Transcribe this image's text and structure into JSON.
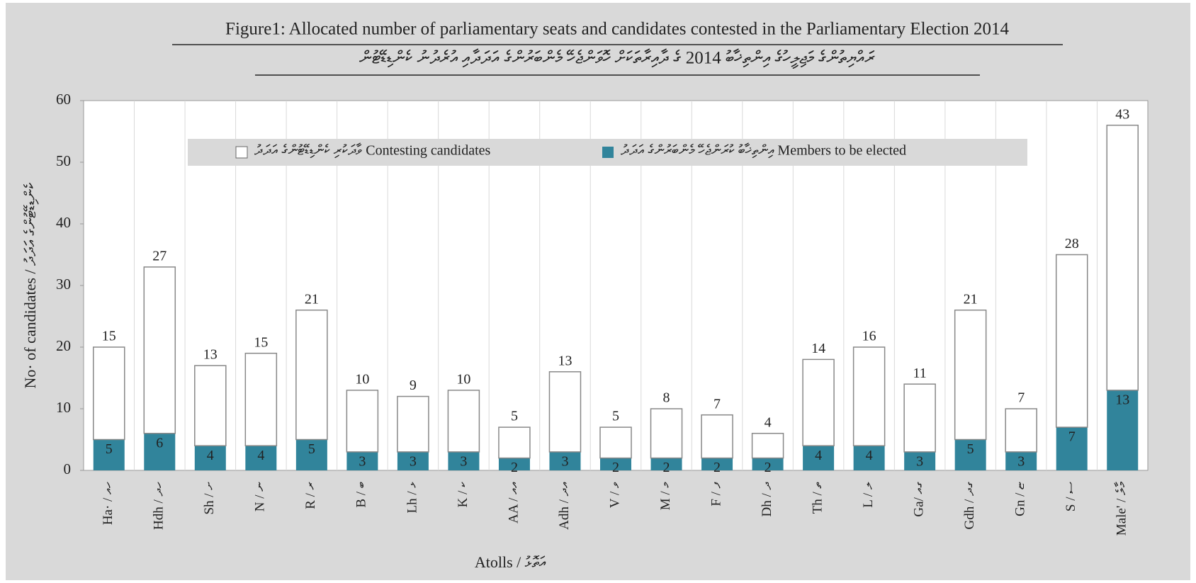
{
  "chart_data": {
    "type": "stacked_bar",
    "title": "Figure1: Allocated number of parliamentary seats and candidates contested in the Parliamentary Election 2014",
    "subtitle": "ރައްޔިތުންގެ މަޖިލީހުގެ އިންތިޚާބު 2014 ގެ ދާއިރާތަކަށް ހޮވަންޖެހޭ މެންބަރުންގެ އަދަދާއި އުރެދުނު ކެންޑިޑޭޓުން",
    "x_label": "Atolls / އަތޮޅު",
    "y_label": "No· of candidates / ކެންޑިޑޭޓުންގެ އަދަދު",
    "categories": [
      "Ha· / ހއ",
      "Hdh / ހދ",
      "Sh / ށ",
      "N / ނ",
      "R / ރ",
      "B / ބ",
      "Lh / ޅ",
      "K / ކ",
      "AA / އއ",
      "Adh / އދ",
      "V / ވ",
      "M / މ",
      "F / ފ",
      "Dh / ދ",
      "Th / ތ",
      "L / ލ",
      "Ga/ ގއ",
      "Gdh / ގދ",
      "Gn / ޏ",
      "S / ސ",
      "Male' / މާލެ"
    ],
    "series": [
      {
        "name": "އިންތިޚާބު ކުރަންޖެހޭ މެންބަރުންގެ އަދަދު Members to be elected",
        "color": "#31849b",
        "values": [
          5,
          6,
          4,
          4,
          5,
          3,
          3,
          3,
          2,
          3,
          2,
          2,
          2,
          2,
          4,
          4,
          3,
          5,
          3,
          7,
          13
        ]
      },
      {
        "name": "ވާދަކުރި ކެންޑިޑޭޓުންގެ އަދަދު Contesting candidates",
        "color": "#ffffff",
        "values": [
          15,
          27,
          13,
          15,
          21,
          10,
          9,
          10,
          5,
          13,
          5,
          8,
          7,
          4,
          14,
          16,
          11,
          21,
          7,
          28,
          43
        ]
      }
    ],
    "ylim": [
      0,
      60
    ],
    "yticks": [
      0,
      10,
      20,
      30,
      40,
      50,
      60
    ],
    "legend": "top"
  }
}
